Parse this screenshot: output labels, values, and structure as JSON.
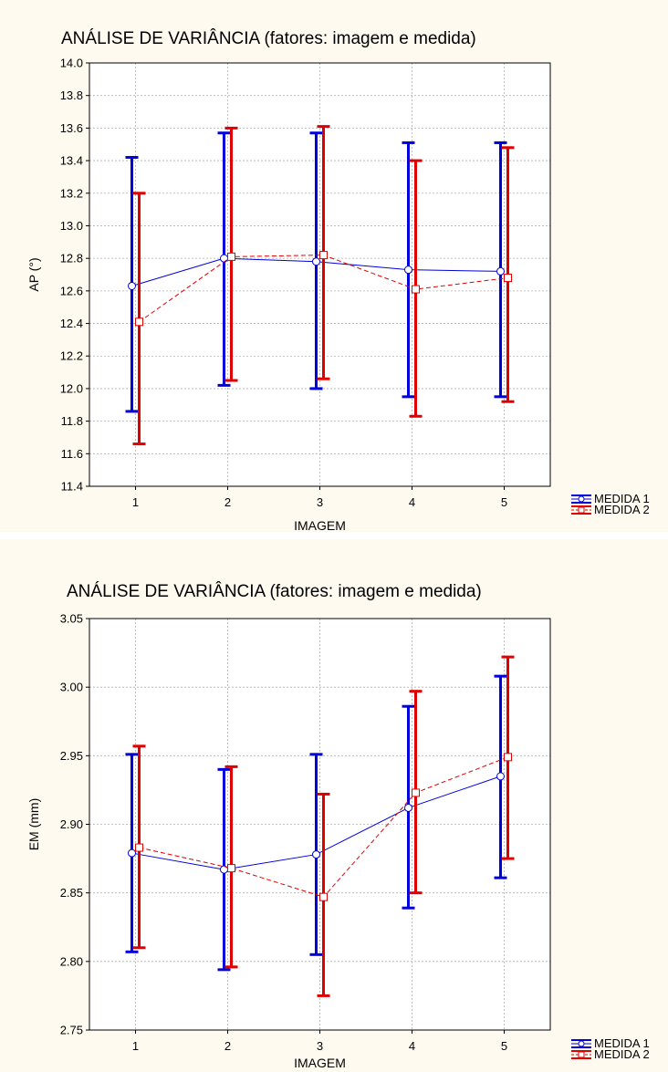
{
  "chart_data": [
    {
      "type": "line",
      "title": "ANÁLISE DE VARIÂNCIA (fatores: imagem e medida)",
      "xlabel": "IMAGEM",
      "ylabel": "AP (°)",
      "categories": [
        "1",
        "2",
        "3",
        "4",
        "5"
      ],
      "ylim": [
        11.4,
        14.0
      ],
      "yticks": [
        "11.4",
        "11.6",
        "11.8",
        "12.0",
        "12.2",
        "12.4",
        "12.6",
        "12.8",
        "13.0",
        "13.2",
        "13.4",
        "13.6",
        "13.8",
        "14.0"
      ],
      "grid": true,
      "legend_position": "bottom-right outside",
      "series": [
        {
          "name": "MEDIDA 1",
          "color": "#0000dd",
          "marker": "circle",
          "line_style": "solid",
          "values": [
            12.63,
            12.8,
            12.78,
            12.73,
            12.72
          ],
          "lower": [
            11.86,
            12.02,
            12.0,
            11.95,
            11.95
          ],
          "upper": [
            13.42,
            13.57,
            13.57,
            13.51,
            13.51
          ]
        },
        {
          "name": "MEDIDA 2",
          "color": "#e00000",
          "marker": "square",
          "line_style": "dashed",
          "values": [
            12.41,
            12.81,
            12.82,
            12.61,
            12.68
          ],
          "lower": [
            11.66,
            12.05,
            12.06,
            11.83,
            11.92
          ],
          "upper": [
            13.2,
            13.6,
            13.61,
            13.4,
            13.48
          ]
        }
      ]
    },
    {
      "type": "line",
      "title": "ANÁLISE DE VARIÂNCIA (fatores: imagem e medida)",
      "xlabel": "IMAGEM",
      "ylabel": "EM (mm)",
      "categories": [
        "1",
        "2",
        "3",
        "4",
        "5"
      ],
      "ylim": [
        2.75,
        3.05
      ],
      "yticks": [
        "2.75",
        "2.80",
        "2.85",
        "2.90",
        "2.95",
        "3.00",
        "3.05"
      ],
      "grid": true,
      "legend_position": "bottom-right outside",
      "series": [
        {
          "name": "MEDIDA 1",
          "color": "#0000dd",
          "marker": "circle",
          "line_style": "solid",
          "values": [
            2.879,
            2.867,
            2.878,
            2.912,
            2.935
          ],
          "lower": [
            2.807,
            2.794,
            2.805,
            2.839,
            2.861
          ],
          "upper": [
            2.951,
            2.94,
            2.951,
            2.986,
            3.008
          ]
        },
        {
          "name": "MEDIDA 2",
          "color": "#e00000",
          "marker": "square",
          "line_style": "dashed",
          "values": [
            2.883,
            2.868,
            2.847,
            2.923,
            2.949
          ],
          "lower": [
            2.81,
            2.796,
            2.775,
            2.85,
            2.875
          ],
          "upper": [
            2.957,
            2.942,
            2.922,
            2.997,
            3.022
          ]
        }
      ]
    }
  ]
}
